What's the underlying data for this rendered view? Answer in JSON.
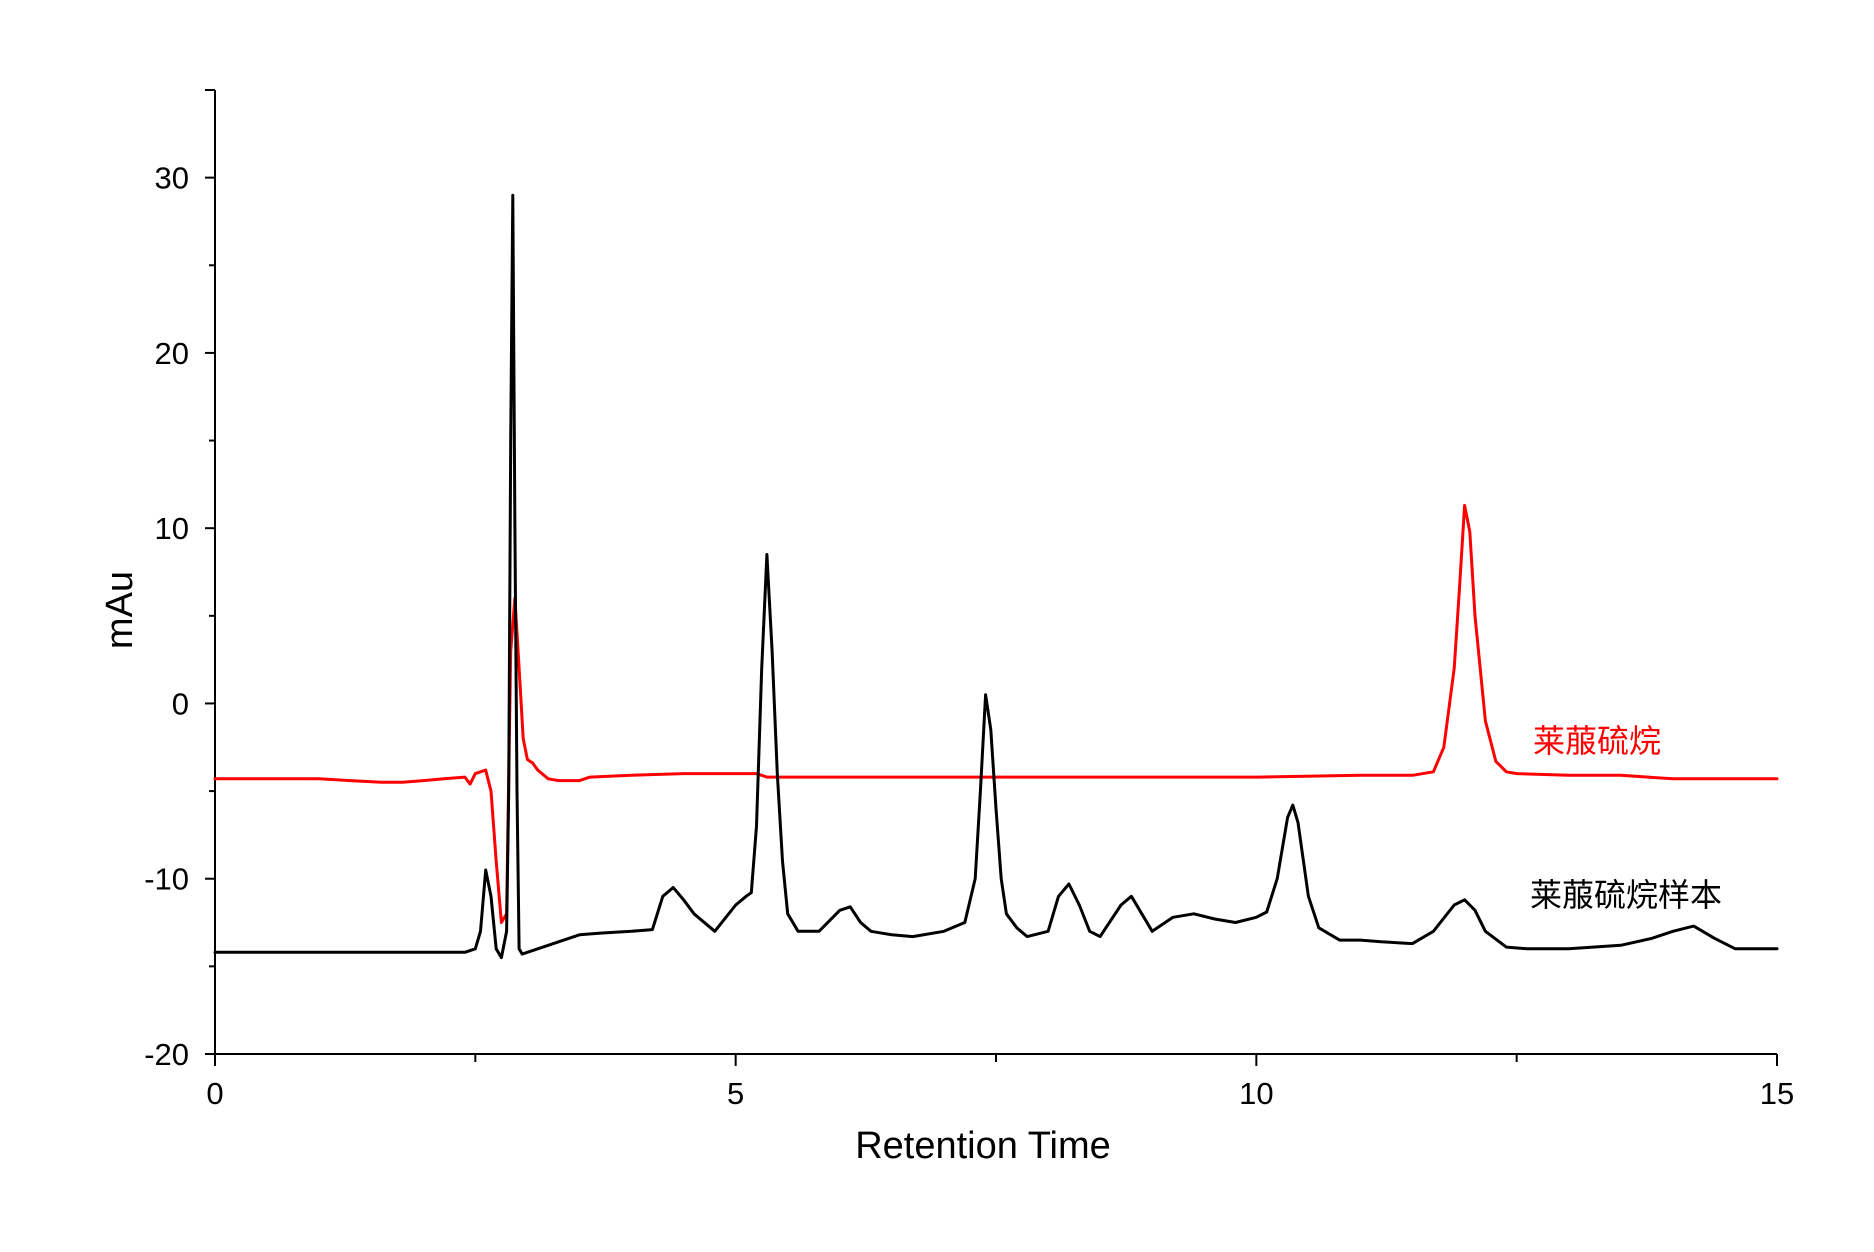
{
  "chart_data": {
    "type": "line",
    "title": "",
    "xlabel": "Retention Time",
    "ylabel": "mAu",
    "xlim": [
      0,
      15
    ],
    "ylim": [
      -20,
      35
    ],
    "xticks": [
      0,
      5,
      10,
      15
    ],
    "yticks": [
      -20,
      -10,
      0,
      10,
      20,
      30
    ],
    "grid": false,
    "series": [
      {
        "name": "莱菔硫烷",
        "color": "#ff0000",
        "x": [
          0,
          0.5,
          1.0,
          1.3,
          1.6,
          1.8,
          2.0,
          2.2,
          2.4,
          2.45,
          2.5,
          2.55,
          2.6,
          2.65,
          2.7,
          2.75,
          2.8,
          2.84,
          2.88,
          2.92,
          2.96,
          3.0,
          3.05,
          3.1,
          3.2,
          3.3,
          3.5,
          3.6,
          4.0,
          4.5,
          5.2,
          5.3,
          6.0,
          7.0,
          8.0,
          9.0,
          10.0,
          11.0,
          11.5,
          11.7,
          11.8,
          11.9,
          11.95,
          12.0,
          12.05,
          12.1,
          12.2,
          12.3,
          12.4,
          12.5,
          13.0,
          13.5,
          14.0,
          15.0
        ],
        "y": [
          -4.3,
          -4.3,
          -4.3,
          -4.4,
          -4.5,
          -4.5,
          -4.4,
          -4.3,
          -4.2,
          -4.6,
          -4.0,
          -3.9,
          -3.8,
          -5.0,
          -9.0,
          -12.5,
          -12.0,
          3.0,
          6.0,
          2.0,
          -2.0,
          -3.2,
          -3.4,
          -3.8,
          -4.3,
          -4.4,
          -4.4,
          -4.2,
          -4.1,
          -4.0,
          -4.0,
          -4.2,
          -4.2,
          -4.2,
          -4.2,
          -4.2,
          -4.2,
          -4.1,
          -4.1,
          -3.9,
          -2.5,
          2.0,
          6.5,
          11.3,
          9.8,
          5.0,
          -1.0,
          -3.3,
          -3.9,
          -4.0,
          -4.1,
          -4.1,
          -4.3,
          -4.3
        ]
      },
      {
        "name": "莱菔硫烷样本",
        "color": "#000000",
        "x": [
          0,
          0.5,
          1.0,
          1.5,
          2.0,
          2.4,
          2.5,
          2.55,
          2.6,
          2.65,
          2.7,
          2.75,
          2.8,
          2.82,
          2.84,
          2.86,
          2.88,
          2.9,
          2.92,
          2.95,
          3.0,
          3.1,
          3.2,
          3.3,
          3.5,
          3.7,
          4.0,
          4.2,
          4.3,
          4.4,
          4.5,
          4.6,
          4.8,
          5.0,
          5.1,
          5.15,
          5.2,
          5.25,
          5.3,
          5.35,
          5.4,
          5.45,
          5.5,
          5.6,
          5.8,
          6.0,
          6.1,
          6.2,
          6.3,
          6.5,
          6.7,
          7.0,
          7.2,
          7.3,
          7.35,
          7.4,
          7.45,
          7.5,
          7.55,
          7.6,
          7.7,
          7.8,
          8.0,
          8.1,
          8.2,
          8.3,
          8.4,
          8.5,
          8.7,
          8.8,
          8.9,
          9.0,
          9.2,
          9.4,
          9.6,
          9.8,
          10.0,
          10.1,
          10.2,
          10.3,
          10.35,
          10.4,
          10.5,
          10.6,
          10.8,
          11.0,
          11.2,
          11.5,
          11.7,
          11.9,
          12.0,
          12.1,
          12.2,
          12.4,
          12.6,
          13.0,
          13.5,
          13.8,
          14.0,
          14.2,
          14.4,
          14.6,
          15.0
        ],
        "y": [
          -14.2,
          -14.2,
          -14.2,
          -14.2,
          -14.2,
          -14.2,
          -14.0,
          -13.0,
          -9.5,
          -11.0,
          -14.0,
          -14.5,
          -13.0,
          -5.0,
          15.0,
          29.0,
          10.0,
          -5.0,
          -14.0,
          -14.3,
          -14.2,
          -14.0,
          -13.8,
          -13.6,
          -13.2,
          -13.1,
          -13.0,
          -12.9,
          -11.0,
          -10.5,
          -11.2,
          -12.0,
          -13.0,
          -11.5,
          -11.0,
          -10.8,
          -7.0,
          2.0,
          8.5,
          3.0,
          -4.0,
          -9.0,
          -12.0,
          -13.0,
          -13.0,
          -11.8,
          -11.6,
          -12.5,
          -13.0,
          -13.2,
          -13.3,
          -13.0,
          -12.5,
          -10.0,
          -5.0,
          0.5,
          -1.5,
          -6.0,
          -10.0,
          -12.0,
          -12.8,
          -13.3,
          -13.0,
          -11.0,
          -10.3,
          -11.5,
          -13.0,
          -13.3,
          -11.5,
          -11.0,
          -12.0,
          -13.0,
          -12.2,
          -12.0,
          -12.3,
          -12.5,
          -12.2,
          -11.9,
          -10.0,
          -6.5,
          -5.8,
          -6.8,
          -11.0,
          -12.8,
          -13.5,
          -13.5,
          -13.6,
          -13.7,
          -13.0,
          -11.5,
          -11.2,
          -11.8,
          -13.0,
          -13.9,
          -14.0,
          -14.0,
          -13.8,
          -13.4,
          -13.0,
          -12.7,
          -13.4,
          -14.0,
          -14.0
        ]
      }
    ]
  }
}
